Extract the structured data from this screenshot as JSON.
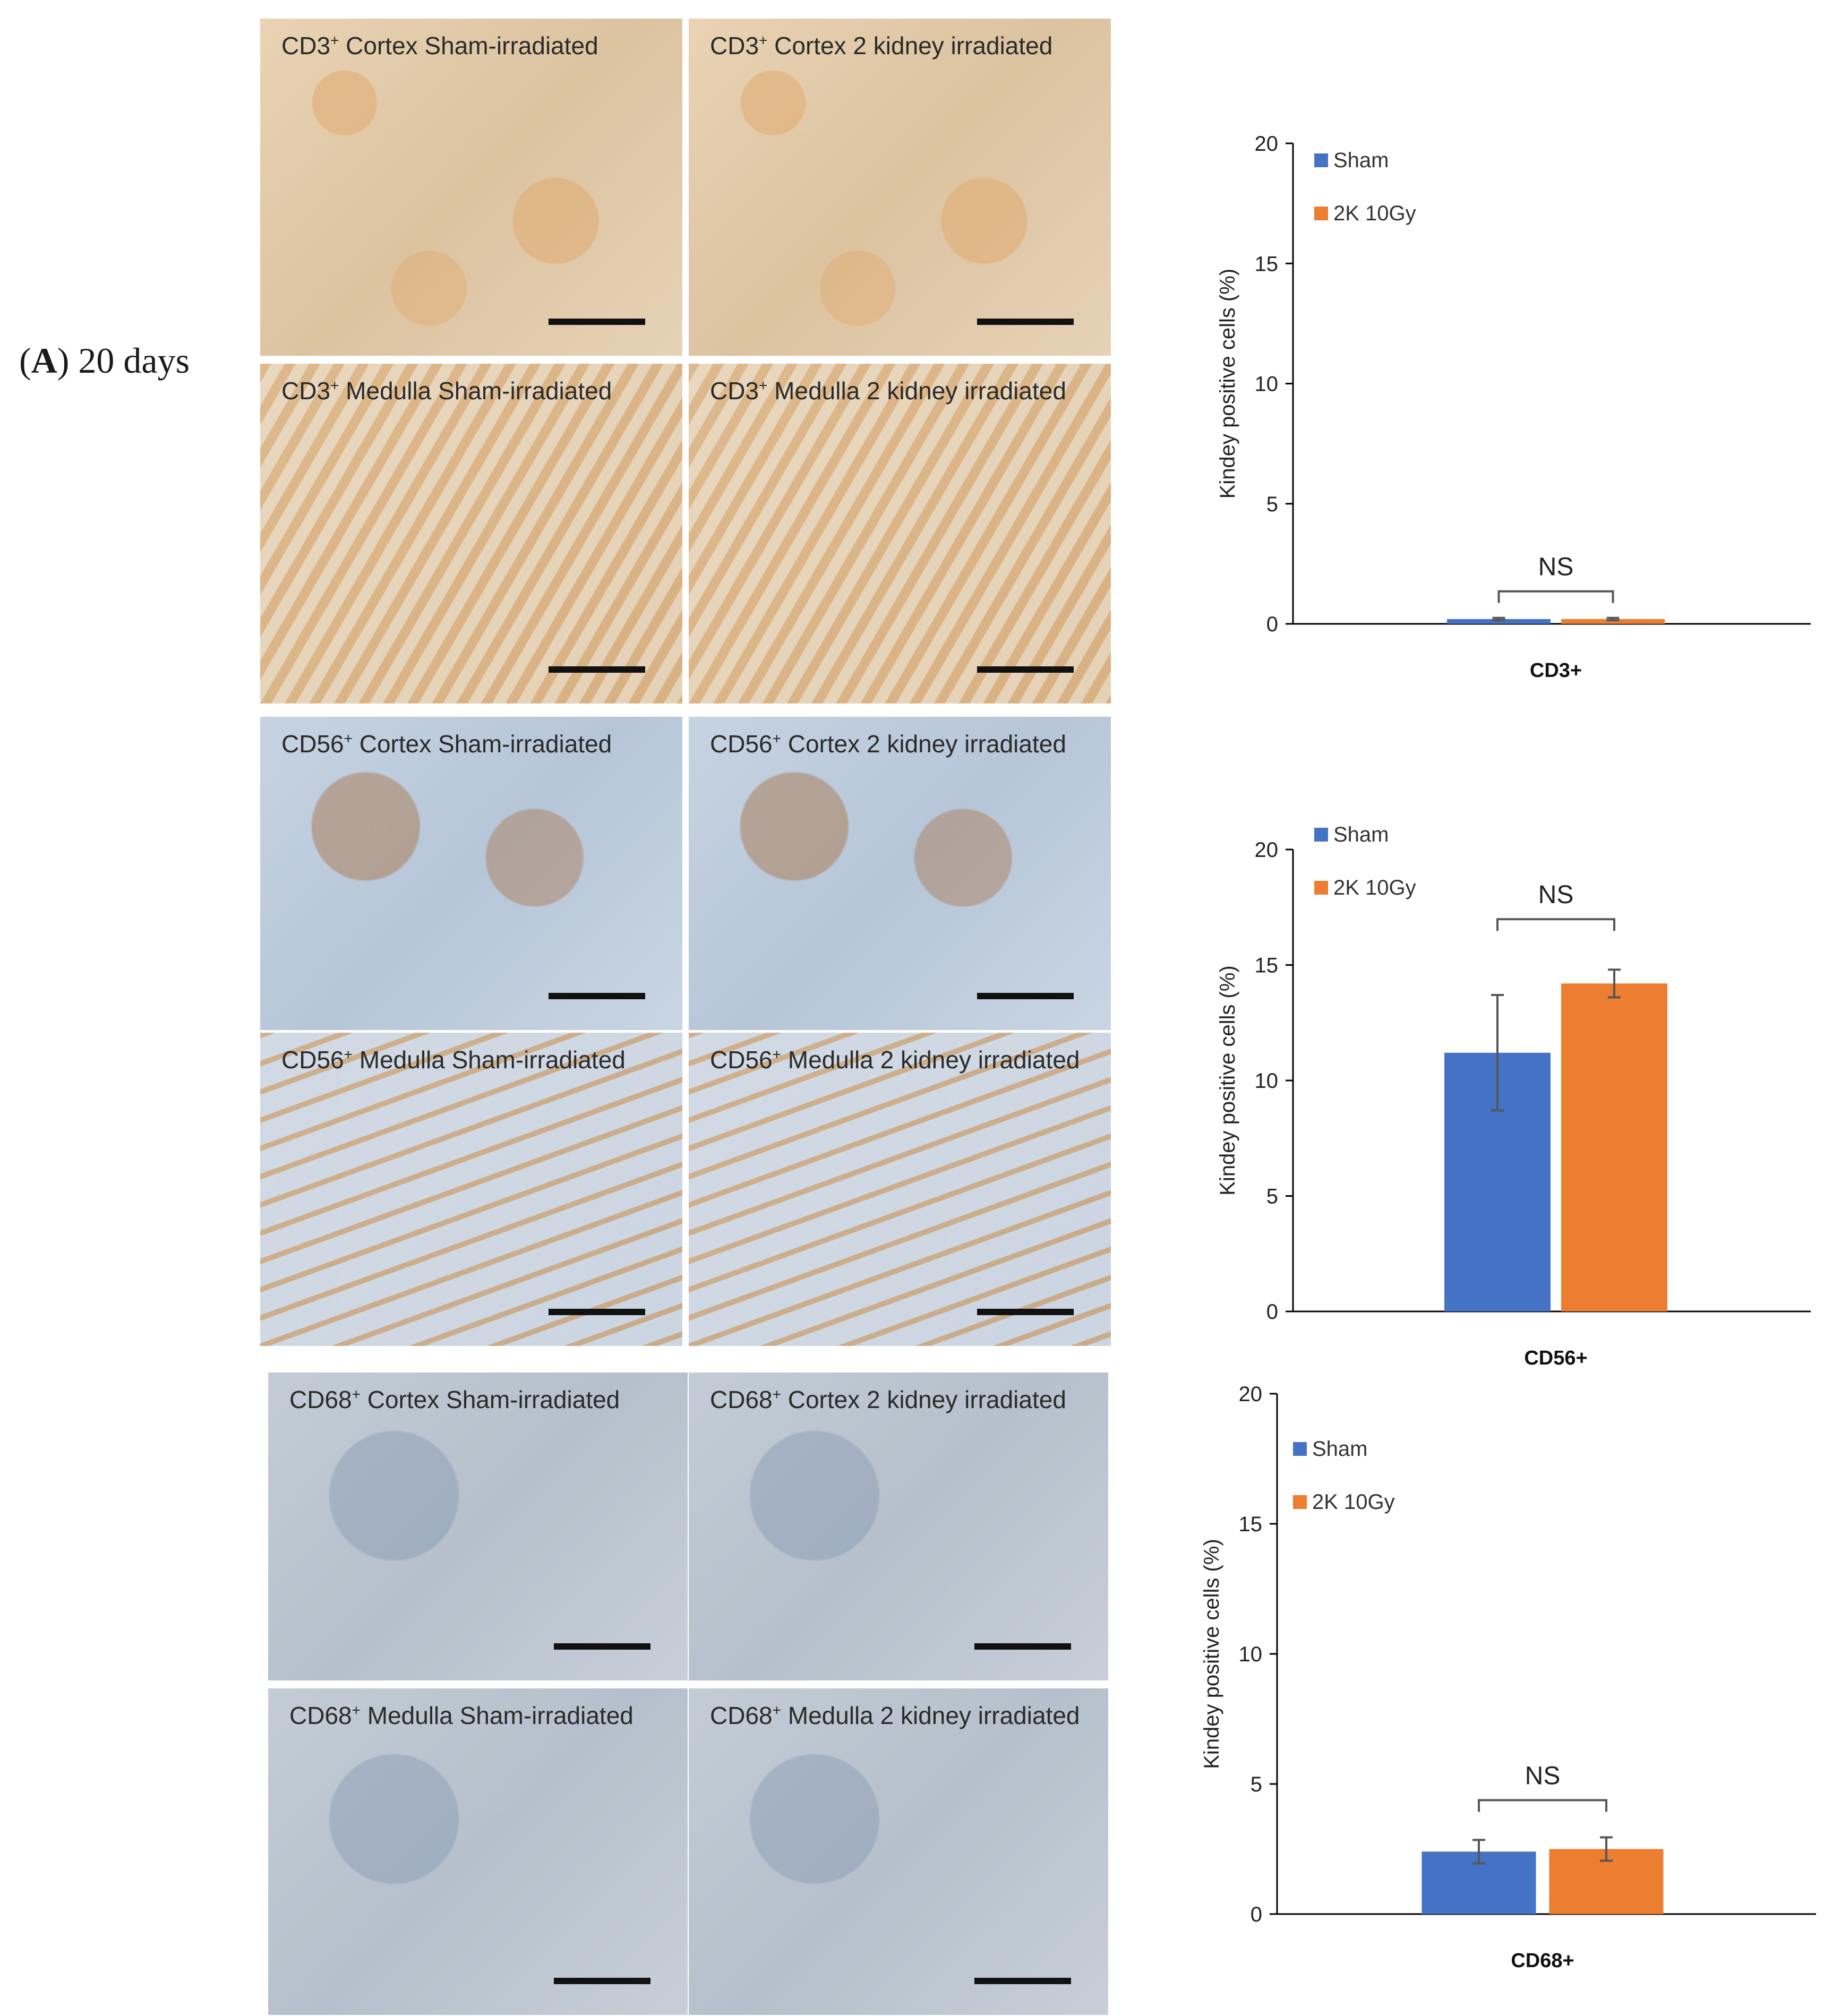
{
  "panel": {
    "label_bold": "A",
    "label_rest": " 20 days"
  },
  "micrographs": [
    {
      "text": "Cortex Sham-irradiated",
      "marker": "CD3",
      "sup": "+",
      "tone": "tan"
    },
    {
      "text": "Cortex 2 kidney irradiated",
      "marker": "CD3",
      "sup": "+",
      "tone": "tan"
    },
    {
      "text": "Medulla Sham-irradiated",
      "marker": "CD3",
      "sup": "+",
      "tone": "tan2"
    },
    {
      "text": "Medulla 2 kidney irradiated",
      "marker": "CD3",
      "sup": "+",
      "tone": "tan2"
    },
    {
      "text": "Cortex Sham-irradiated",
      "marker": "CD56",
      "sup": "+",
      "tone": "blue"
    },
    {
      "text": "Cortex 2 kidney irradiated",
      "marker": "CD56",
      "sup": "+",
      "tone": "blue"
    },
    {
      "text": "Medulla Sham-irradiated",
      "marker": "CD56",
      "sup": "+",
      "tone": "blue2"
    },
    {
      "text": "Medulla 2 kidney irradiated",
      "marker": "CD56",
      "sup": "+",
      "tone": "blue2"
    },
    {
      "text": "Cortex Sham-irradiated",
      "marker": "CD68",
      "sup": "+",
      "tone": "grey"
    },
    {
      "text": "Cortex 2 kidney irradiated",
      "marker": "CD68",
      "sup": "+",
      "tone": "grey"
    },
    {
      "text": "Medulla Sham-irradiated",
      "marker": "CD68",
      "sup": "+",
      "tone": "grey"
    },
    {
      "text": "Medulla 2 kidney irradiated",
      "marker": "CD68",
      "sup": "+",
      "tone": "grey"
    }
  ],
  "colors": {
    "sham": "#4472c4",
    "irradiated": "#ed7d31",
    "axis": "#000000",
    "error": "#555555",
    "bracket": "#555555"
  },
  "chart_data": [
    {
      "type": "bar",
      "categories": [
        "CD3+"
      ],
      "series": [
        {
          "name": "Sham",
          "values": [
            0.2
          ],
          "error": [
            0.05
          ]
        },
        {
          "name": "2K 10Gy",
          "values": [
            0.2
          ],
          "error": [
            0.05
          ]
        }
      ],
      "ylabel": "Kindey positive cells (%)",
      "xlabel": "CD3+",
      "ylim": [
        0,
        20
      ],
      "yticks": [
        0,
        5,
        10,
        15,
        20
      ],
      "annotation": "NS",
      "legend": "top-left",
      "grid": false
    },
    {
      "type": "bar",
      "categories": [
        "CD56+"
      ],
      "series": [
        {
          "name": "Sham",
          "values": [
            11.2
          ],
          "error": [
            2.5
          ]
        },
        {
          "name": "2K 10Gy",
          "values": [
            14.2
          ],
          "error": [
            0.6
          ]
        }
      ],
      "ylabel": "Kindey positive cells (%)",
      "xlabel": "CD56+",
      "ylim": [
        0,
        20
      ],
      "yticks": [
        0,
        5,
        10,
        15,
        20
      ],
      "annotation": "NS",
      "legend": "top-left",
      "grid": false
    },
    {
      "type": "bar",
      "categories": [
        "CD68+"
      ],
      "series": [
        {
          "name": "Sham",
          "values": [
            2.4
          ],
          "error": [
            0.45
          ]
        },
        {
          "name": "2K 10Gy",
          "values": [
            2.5
          ],
          "error": [
            0.45
          ]
        }
      ],
      "ylabel": "Kindey positive cells (%)",
      "xlabel": "CD68+",
      "ylim": [
        0,
        20
      ],
      "yticks": [
        0,
        5,
        10,
        15,
        20
      ],
      "annotation": "NS",
      "legend": "top-left",
      "grid": false
    }
  ]
}
